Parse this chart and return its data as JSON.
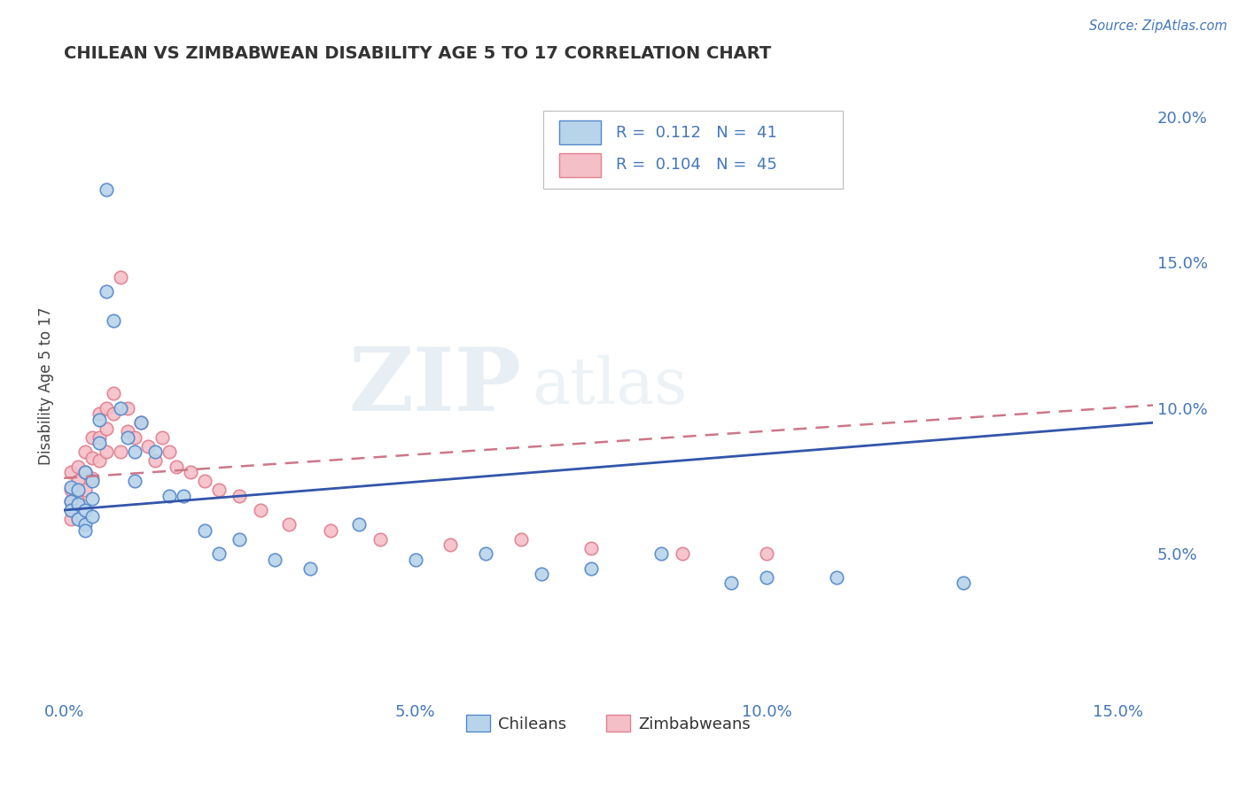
{
  "title": "CHILEAN VS ZIMBABWEAN DISABILITY AGE 5 TO 17 CORRELATION CHART",
  "source": "Source: ZipAtlas.com",
  "ylabel": "Disability Age 5 to 17",
  "xlim": [
    0.0,
    0.155
  ],
  "ylim": [
    0.0,
    0.215
  ],
  "xticks": [
    0.0,
    0.05,
    0.1,
    0.15
  ],
  "xtick_labels": [
    "0.0%",
    "5.0%",
    "10.0%",
    "15.0%"
  ],
  "yticks": [
    0.05,
    0.1,
    0.15,
    0.2
  ],
  "ytick_labels": [
    "5.0%",
    "10.0%",
    "15.0%",
    "20.0%"
  ],
  "chilean_color": "#b8d4ea",
  "chilean_edge": "#5588cc",
  "zimbabwean_color": "#f5bfc8",
  "zimbabwean_edge": "#e08090",
  "trend_chilean_color": "#3355aa",
  "trend_zimbabwean_color": "#cc7788",
  "R_chilean": 0.112,
  "N_chilean": 41,
  "R_zimbabwean": 0.104,
  "N_zimbabwean": 45,
  "watermark_zip": "ZIP",
  "watermark_atlas": "atlas",
  "chilean_x": [
    0.001,
    0.001,
    0.001,
    0.002,
    0.002,
    0.002,
    0.003,
    0.003,
    0.003,
    0.003,
    0.004,
    0.004,
    0.004,
    0.005,
    0.005,
    0.006,
    0.006,
    0.007,
    0.008,
    0.009,
    0.01,
    0.01,
    0.011,
    0.013,
    0.015,
    0.017,
    0.02,
    0.022,
    0.025,
    0.03,
    0.035,
    0.042,
    0.05,
    0.06,
    0.068,
    0.075,
    0.085,
    0.095,
    0.1,
    0.11,
    0.128
  ],
  "chilean_y": [
    0.073,
    0.068,
    0.065,
    0.072,
    0.067,
    0.062,
    0.078,
    0.065,
    0.06,
    0.058,
    0.075,
    0.069,
    0.063,
    0.096,
    0.088,
    0.14,
    0.175,
    0.13,
    0.1,
    0.09,
    0.085,
    0.075,
    0.095,
    0.085,
    0.07,
    0.07,
    0.058,
    0.05,
    0.055,
    0.048,
    0.045,
    0.06,
    0.048,
    0.05,
    0.043,
    0.045,
    0.05,
    0.04,
    0.042,
    0.042,
    0.04
  ],
  "zimbabwean_x": [
    0.001,
    0.001,
    0.001,
    0.001,
    0.002,
    0.002,
    0.002,
    0.003,
    0.003,
    0.003,
    0.004,
    0.004,
    0.004,
    0.005,
    0.005,
    0.005,
    0.006,
    0.006,
    0.006,
    0.007,
    0.007,
    0.008,
    0.008,
    0.009,
    0.009,
    0.01,
    0.011,
    0.012,
    0.013,
    0.014,
    0.015,
    0.016,
    0.018,
    0.02,
    0.022,
    0.025,
    0.028,
    0.032,
    0.038,
    0.045,
    0.055,
    0.065,
    0.075,
    0.088,
    0.1
  ],
  "zimbabwean_y": [
    0.078,
    0.072,
    0.068,
    0.062,
    0.08,
    0.075,
    0.068,
    0.085,
    0.078,
    0.072,
    0.09,
    0.083,
    0.076,
    0.098,
    0.09,
    0.082,
    0.1,
    0.093,
    0.085,
    0.105,
    0.098,
    0.145,
    0.085,
    0.1,
    0.092,
    0.09,
    0.095,
    0.087,
    0.082,
    0.09,
    0.085,
    0.08,
    0.078,
    0.075,
    0.072,
    0.07,
    0.065,
    0.06,
    0.058,
    0.055,
    0.053,
    0.055,
    0.052,
    0.05,
    0.05
  ]
}
